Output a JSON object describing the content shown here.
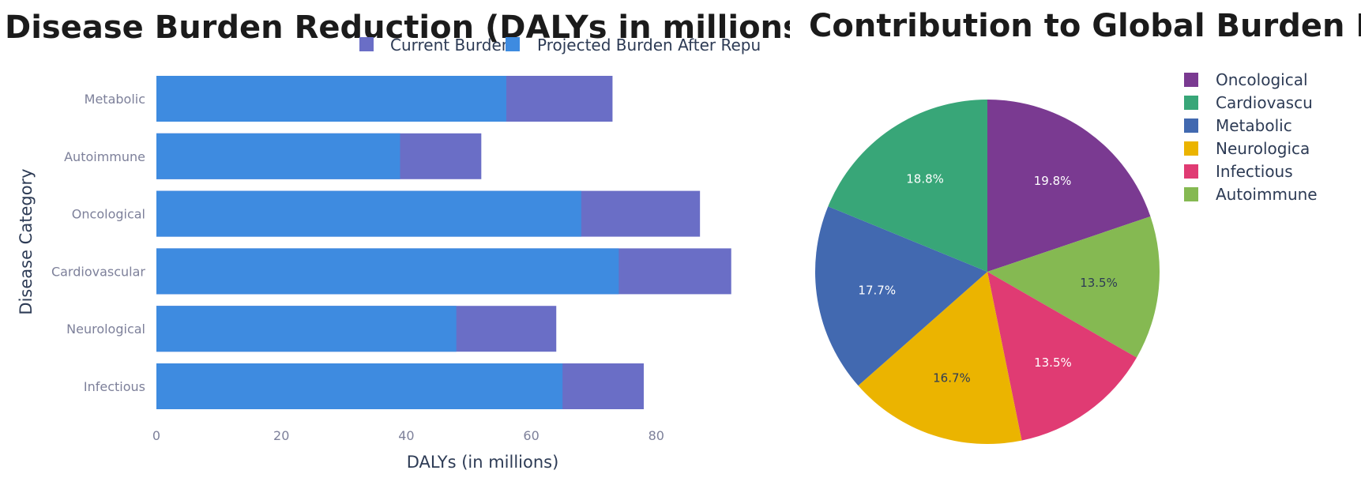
{
  "chart_data": [
    {
      "type": "bar",
      "orientation": "horizontal",
      "title": "Disease Burden Reduction (DALYs in millions)",
      "xlabel": "DALYs (in millions)",
      "ylabel": "Disease Category",
      "categories": [
        "Infectious",
        "Neurological",
        "Cardiovascular",
        "Oncological",
        "Autoimmune",
        "Metabolic"
      ],
      "series": [
        {
          "name": "Current Burden",
          "color": "#6a6ec6",
          "values": [
            78,
            64,
            92,
            87,
            52,
            73
          ]
        },
        {
          "name": "Projected Burden After Repu",
          "color": "#3e8be0",
          "values": [
            65,
            48,
            74,
            68,
            39,
            56
          ]
        }
      ],
      "xlim": [
        0,
        92
      ],
      "xticks": [
        0,
        20,
        40,
        60,
        80
      ],
      "legend_position": "top",
      "grid": false
    },
    {
      "type": "pie",
      "title": "Contribution to Global Burden R",
      "legend_position": "right",
      "slices": [
        {
          "label": "Oncological",
          "percent": 19.8,
          "display": "19.8%",
          "color": "#7a3a91",
          "label_color": "#ffffff"
        },
        {
          "label": "Autoimmune",
          "percent": 13.5,
          "display": "13.5%",
          "color": "#85b952",
          "label_color": "#2d3b55"
        },
        {
          "label": "Infectious",
          "percent": 13.5,
          "display": "13.5%",
          "color": "#e03b73",
          "label_color": "#ffffff"
        },
        {
          "label": "Neurological",
          "percent": 16.7,
          "display": "16.7%",
          "color": "#ebb400",
          "label_color": "#2d3b55"
        },
        {
          "label": "Metabolic",
          "percent": 17.7,
          "display": "17.7%",
          "color": "#4269b0",
          "label_color": "#ffffff"
        },
        {
          "label": "Cardiovascular",
          "percent": 18.8,
          "display": "18.8%",
          "color": "#38a678",
          "label_color": "#ffffff"
        }
      ],
      "legend": [
        {
          "label": "Oncological",
          "display": "Oncological",
          "color": "#7a3a91"
        },
        {
          "label": "Cardiovascular",
          "display": "Cardiovascu",
          "color": "#38a678"
        },
        {
          "label": "Metabolic",
          "display": "Metabolic",
          "color": "#4269b0"
        },
        {
          "label": "Neurological",
          "display": "Neurologica",
          "color": "#ebb400"
        },
        {
          "label": "Infectious",
          "display": "Infectious",
          "color": "#e03b73"
        },
        {
          "label": "Autoimmune",
          "display": "Autoimmune",
          "color": "#85b952"
        }
      ]
    }
  ]
}
